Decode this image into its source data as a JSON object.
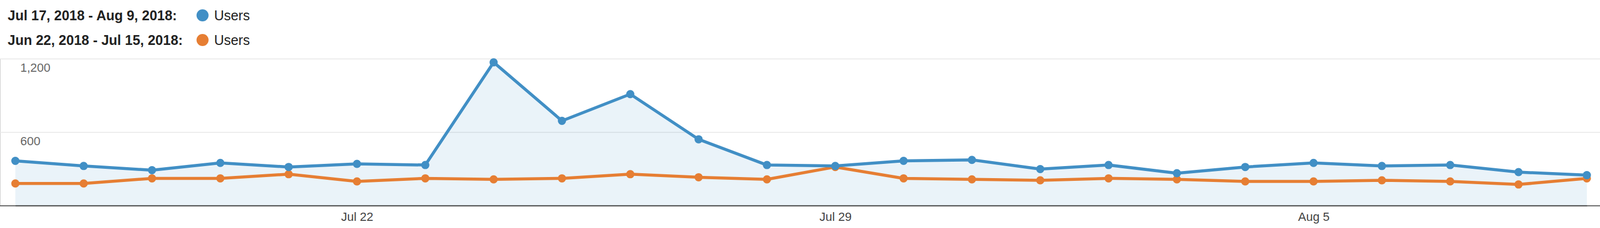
{
  "chart_data": {
    "type": "line",
    "categories": [
      null,
      null,
      null,
      null,
      null,
      "Jul 22",
      null,
      null,
      null,
      null,
      null,
      null,
      "Jul 29",
      null,
      null,
      null,
      null,
      null,
      null,
      "Aug 5",
      null,
      null,
      null,
      null
    ],
    "series": [
      {
        "label": "Jul 17, 2018 - Aug 9, 2018:",
        "name": "Users",
        "color": "#418fc5",
        "marker": "circle",
        "values": [
          365,
          323,
          289,
          348,
          315,
          340,
          331,
          1170,
          692,
          910,
          541,
          331,
          323,
          365,
          373,
          298,
          331,
          264,
          315,
          348,
          323,
          331,
          273,
          248
        ]
      },
      {
        "label": "Jun 22, 2018 - Jul 15, 2018:",
        "name": "Users",
        "color": "#e67e33",
        "marker": "circle",
        "values": [
          180,
          180,
          222,
          222,
          256,
          197,
          222,
          214,
          222,
          256,
          231,
          214,
          315,
          222,
          214,
          206,
          222,
          214,
          197,
          197,
          206,
          197,
          172,
          222
        ]
      }
    ],
    "ylim": [
      0,
      1200
    ],
    "yticks": [
      600,
      {
        "value": 1200,
        "label": "1,200"
      }
    ],
    "grid": true,
    "legend": "top-left"
  }
}
